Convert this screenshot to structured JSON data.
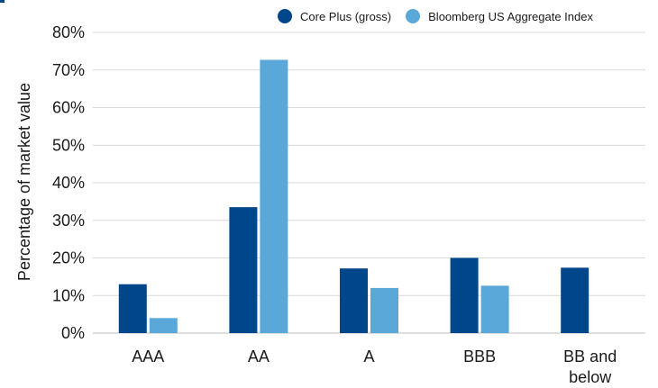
{
  "colors": {
    "core_plus": "#00468b",
    "bloomberg": "#5aa7d9",
    "grid": "#d9d9d9",
    "axis": "#bfbfbf",
    "text": "#1a1a1a"
  },
  "legend": {
    "items": [
      {
        "label": "Core Plus (gross)",
        "color": "#00468b"
      },
      {
        "label": "Bloomberg US Aggregate Index",
        "color": "#5aa7d9"
      }
    ],
    "placement": "top-right"
  },
  "chart_data": {
    "type": "bar",
    "title": "",
    "xlabel": "",
    "ylabel": "Percentage of market value",
    "categories": [
      [
        "AAA"
      ],
      [
        "AA"
      ],
      [
        "A"
      ],
      [
        "BBB"
      ],
      [
        "BB and",
        "below"
      ]
    ],
    "series": [
      {
        "name": "Core Plus (gross)",
        "color": "#00468b",
        "values": [
          13,
          33.5,
          17.2,
          20,
          17.4
        ]
      },
      {
        "name": "Bloomberg US Aggregate Index",
        "color": "#5aa7d9",
        "values": [
          4,
          72.7,
          12,
          12.6,
          0
        ]
      }
    ],
    "ylim": [
      0,
      80
    ],
    "yticks": [
      0,
      10,
      20,
      30,
      40,
      50,
      60,
      70,
      80
    ],
    "ytick_labels": [
      "0%",
      "10%",
      "20%",
      "30%",
      "40%",
      "50%",
      "60%",
      "70%",
      "80%"
    ],
    "grid": true
  }
}
